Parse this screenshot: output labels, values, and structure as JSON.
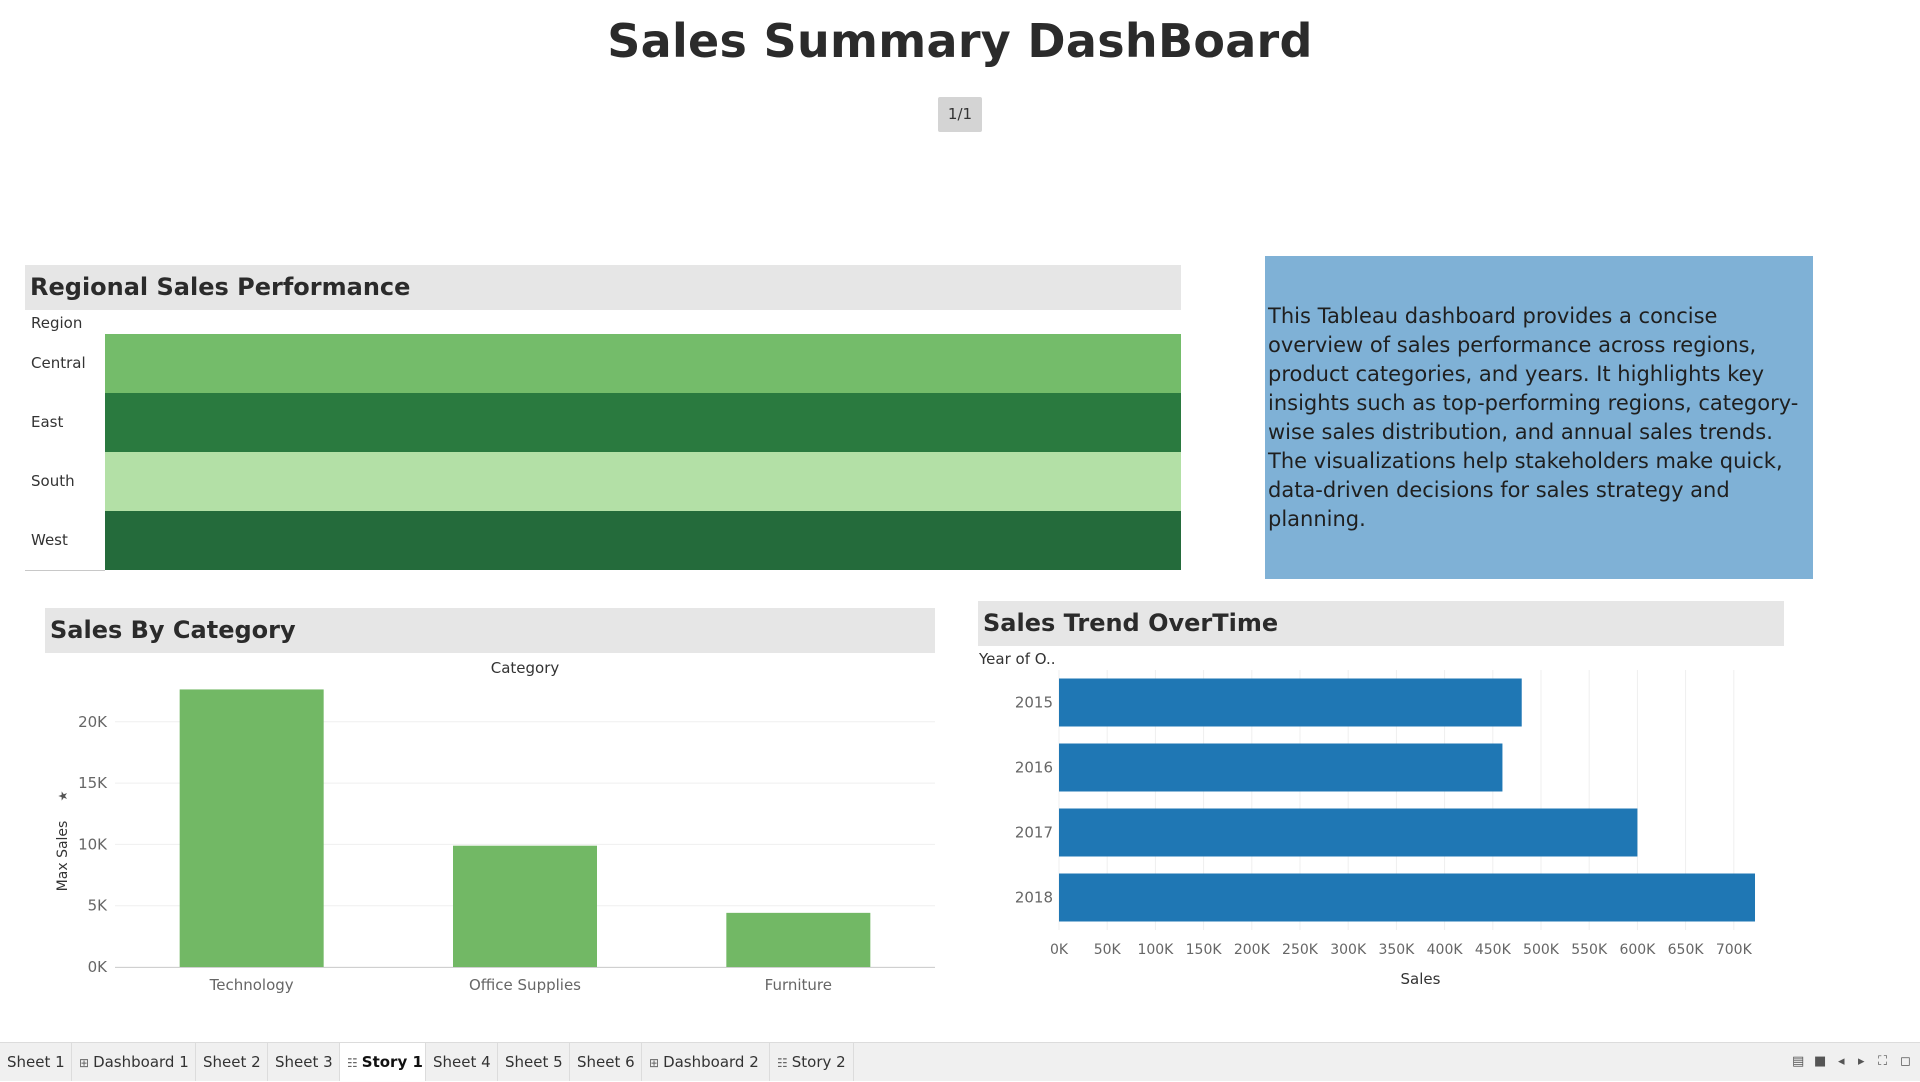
{
  "story": {
    "title": "Sales Summary DashBoard",
    "point_label": "1/1"
  },
  "regional": {
    "title": "Regional Sales Performance",
    "dimension_label": "Region",
    "rows": [
      {
        "label": "Central",
        "color": "#74bc6a"
      },
      {
        "label": "East",
        "color": "#2a7a3f"
      },
      {
        "label": "South",
        "color": "#b3e0a6"
      },
      {
        "label": "West",
        "color": "#246b3b"
      }
    ]
  },
  "description": {
    "text": "This Tableau dashboard provides a concise overview of sales performance across regions, product categories, and years. It highlights key insights such as top-performing regions, category-wise sales distribution, and annual sales trends. The visualizations help stakeholders make quick, data-driven decisions for sales strategy and planning.",
    "background": "#7fb1d6"
  },
  "category_panel": {
    "title": "Sales By Category"
  },
  "trend_panel": {
    "title": "Sales Trend OverTime"
  },
  "chart_data": [
    {
      "type": "bar",
      "title": "",
      "header": "Category",
      "categories": [
        "Technology",
        "Office Supplies",
        "Furniture"
      ],
      "values": [
        22638,
        9893,
        4416
      ],
      "ylabel": "Max Sales",
      "ylim": [
        0,
        23000
      ],
      "yticks": [
        "0K",
        "5K",
        "10K",
        "15K",
        "20K"
      ],
      "ytick_values": [
        0,
        5000,
        10000,
        15000,
        20000
      ],
      "color": "#72b865",
      "grid": true
    },
    {
      "type": "bar",
      "orientation": "horizontal",
      "title": "",
      "header": "Year of O..",
      "categories": [
        "2015",
        "2016",
        "2017",
        "2018"
      ],
      "values": [
        480000,
        460000,
        600000,
        722000
      ],
      "xlabel": "Sales",
      "xlim": [
        0,
        750000
      ],
      "xticks": [
        "0K",
        "50K",
        "100K",
        "150K",
        "200K",
        "250K",
        "300K",
        "350K",
        "400K",
        "450K",
        "500K",
        "550K",
        "600K",
        "650K",
        "700K"
      ],
      "xtick_values": [
        0,
        50000,
        100000,
        150000,
        200000,
        250000,
        300000,
        350000,
        400000,
        450000,
        500000,
        550000,
        600000,
        650000,
        700000
      ],
      "color": "#1f77b4",
      "grid": true
    }
  ],
  "tabs": [
    {
      "label": "Sheet 1",
      "kind": "sheet",
      "active": false
    },
    {
      "label": "Dashboard 1",
      "kind": "dashboard",
      "active": false
    },
    {
      "label": "Sheet 2",
      "kind": "sheet",
      "active": false
    },
    {
      "label": "Sheet 3",
      "kind": "sheet",
      "active": false
    },
    {
      "label": "Story 1",
      "kind": "story",
      "active": true
    },
    {
      "label": "Sheet 4",
      "kind": "sheet",
      "active": false
    },
    {
      "label": "Sheet 5",
      "kind": "sheet",
      "active": false
    },
    {
      "label": "Sheet 6",
      "kind": "sheet",
      "active": false
    },
    {
      "label": "Dashboard 2",
      "kind": "dashboard",
      "active": false
    },
    {
      "label": "Story 2",
      "kind": "story",
      "active": false
    }
  ],
  "icons": {
    "dashboard": "grid-icon",
    "story": "book-icon",
    "sort": "sort-icon"
  }
}
